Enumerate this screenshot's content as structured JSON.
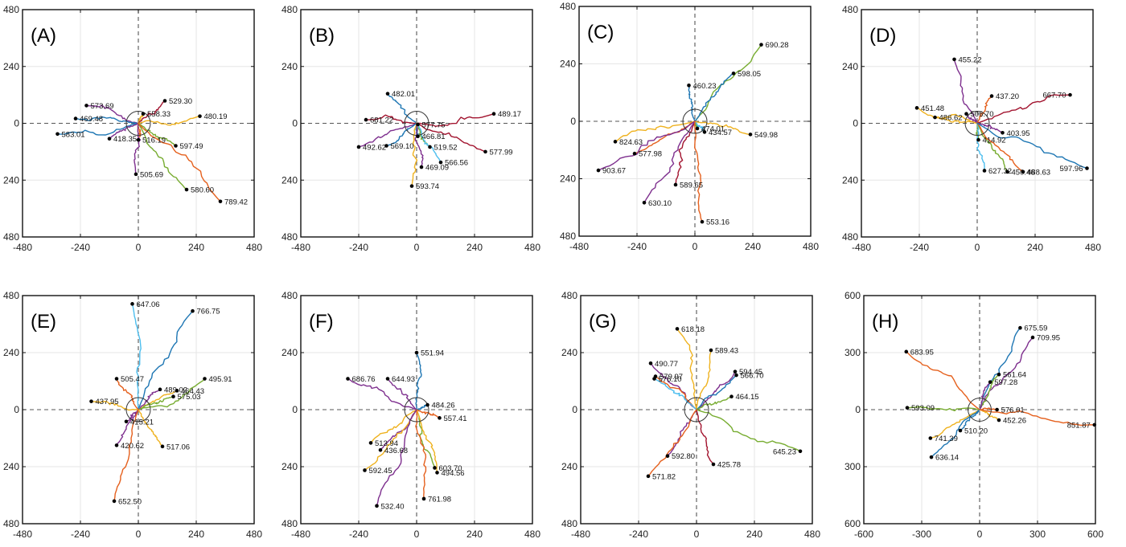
{
  "colors": [
    "#1f77b4",
    "#e5601d",
    "#efb21f",
    "#7e2f8e",
    "#77ac30",
    "#4dbeee",
    "#a2142f"
  ],
  "chart_data": [
    {
      "type": "line",
      "label": "(A)",
      "xticks": [
        "-480",
        "-240",
        "0",
        "240",
        "480"
      ],
      "yticks": [
        "480",
        "240",
        "0",
        "240",
        "480"
      ],
      "xlim": [
        -480,
        480
      ],
      "ylim": [
        -480,
        480
      ],
      "circle_radius": 50,
      "series": [
        {
          "color": 0,
          "end": [
            -335,
            -45
          ],
          "label": "583.01"
        },
        {
          "color": 3,
          "end": [
            -215,
            75
          ],
          "label": "573.69"
        },
        {
          "color": 0,
          "end": [
            -260,
            20
          ],
          "label": "469.48"
        },
        {
          "color": 3,
          "end": [
            -120,
            -65
          ],
          "label": "418.35"
        },
        {
          "color": 1,
          "end": [
            0,
            -70
          ],
          "label": "516.19"
        },
        {
          "color": 3,
          "end": [
            -10,
            -215
          ],
          "label": "505.69"
        },
        {
          "color": 2,
          "end": [
            20,
            40
          ],
          "label": "558.33"
        },
        {
          "color": 6,
          "end": [
            110,
            95
          ],
          "label": "529.30"
        },
        {
          "color": 2,
          "end": [
            255,
            30
          ],
          "label": "480.19"
        },
        {
          "color": 4,
          "end": [
            155,
            -95
          ],
          "label": "597.49"
        },
        {
          "color": 4,
          "end": [
            200,
            -280
          ],
          "label": "580.60"
        },
        {
          "color": 1,
          "end": [
            340,
            -330
          ],
          "label": "789.42"
        }
      ]
    },
    {
      "type": "line",
      "label": "(B)",
      "xticks": [
        "-480",
        "-240",
        "0",
        "240",
        "480"
      ],
      "yticks": [
        "480",
        "240",
        "0",
        "240",
        "480"
      ],
      "xlim": [
        -480,
        480
      ],
      "ylim": [
        -480,
        480
      ],
      "circle_radius": 50,
      "series": [
        {
          "color": 0,
          "end": [
            -120,
            125
          ],
          "label": "482.01"
        },
        {
          "color": 6,
          "end": [
            -210,
            15
          ],
          "label": "681.22"
        },
        {
          "color": 3,
          "end": [
            -240,
            -100
          ],
          "label": "492.62"
        },
        {
          "color": 0,
          "end": [
            -125,
            -95
          ],
          "label": "569.10"
        },
        {
          "color": 2,
          "end": [
            -20,
            -265
          ],
          "label": "593.74"
        },
        {
          "color": 4,
          "end": [
            5,
            -5
          ],
          "label": "577.75"
        },
        {
          "color": 0,
          "end": [
            5,
            -55
          ],
          "label": "466.81"
        },
        {
          "color": 4,
          "end": [
            55,
            -100
          ],
          "label": "519.52"
        },
        {
          "color": 5,
          "end": [
            100,
            -165
          ],
          "label": "566.56"
        },
        {
          "color": 3,
          "end": [
            20,
            -185
          ],
          "label": "469.09"
        },
        {
          "color": 6,
          "end": [
            320,
            40
          ],
          "label": "489.17"
        },
        {
          "color": 6,
          "end": [
            285,
            -120
          ],
          "label": "577.99"
        }
      ]
    },
    {
      "type": "line",
      "label": "(C)",
      "xticks": [
        "-480",
        "-240",
        "0",
        "240",
        "480"
      ],
      "yticks": [
        "480",
        "240",
        "0",
        "240",
        "480"
      ],
      "xlim": [
        -480,
        480
      ],
      "ylim": [
        -480,
        480
      ],
      "circle_radius": 50,
      "series": [
        {
          "color": 4,
          "end": [
            275,
            320
          ],
          "label": "690.28"
        },
        {
          "color": 0,
          "end": [
            160,
            200
          ],
          "label": "598.05"
        },
        {
          "color": 0,
          "end": [
            -25,
            150
          ],
          "label": "460.23"
        },
        {
          "color": 4,
          "end": [
            10,
            -30
          ],
          "label": "474.01"
        },
        {
          "color": 5,
          "end": [
            40,
            -45
          ],
          "label": "434.57"
        },
        {
          "color": 2,
          "end": [
            230,
            -55
          ],
          "label": "549.98"
        },
        {
          "color": 2,
          "end": [
            -330,
            -85
          ],
          "label": "824.63"
        },
        {
          "color": 1,
          "end": [
            -250,
            -135
          ],
          "label": "577.98"
        },
        {
          "color": 3,
          "end": [
            -400,
            -205
          ],
          "label": "903.67"
        },
        {
          "color": 6,
          "end": [
            -80,
            -265
          ],
          "label": "589.65"
        },
        {
          "color": 3,
          "end": [
            -210,
            -340
          ],
          "label": "630.10"
        },
        {
          "color": 1,
          "end": [
            30,
            -420
          ],
          "label": "553.16"
        }
      ]
    },
    {
      "type": "line",
      "label": "(D)",
      "xticks": [
        "-480",
        "-240",
        "0",
        "240",
        "480"
      ],
      "yticks": [
        "480",
        "240",
        "0",
        "240",
        "480"
      ],
      "xlim": [
        -480,
        480
      ],
      "ylim": [
        -480,
        480
      ],
      "circle_radius": 50,
      "series": [
        {
          "color": 3,
          "end": [
            -95,
            270
          ],
          "label": "455.22"
        },
        {
          "color": 1,
          "end": [
            60,
            115
          ],
          "label": "437.20"
        },
        {
          "color": 6,
          "end": [
            385,
            120
          ],
          "label": "667.70"
        },
        {
          "color": 2,
          "end": [
            -250,
            65
          ],
          "label": "451.48"
        },
        {
          "color": 3,
          "end": [
            -45,
            40
          ],
          "label": "506.70"
        },
        {
          "color": 2,
          "end": [
            -175,
            25
          ],
          "label": "486.62"
        },
        {
          "color": 3,
          "end": [
            105,
            -40
          ],
          "label": "403.95"
        },
        {
          "color": 4,
          "end": [
            5,
            -70
          ],
          "label": "414.92"
        },
        {
          "color": 5,
          "end": [
            30,
            -200
          ],
          "label": "627.32"
        },
        {
          "color": 4,
          "end": [
            125,
            -205
          ],
          "label": "450.46"
        },
        {
          "color": 1,
          "end": [
            190,
            -205
          ],
          "label": "488.63"
        },
        {
          "color": 0,
          "end": [
            455,
            -190
          ],
          "label": "597.96"
        }
      ]
    },
    {
      "type": "line",
      "label": "(E)",
      "xticks": [
        "-480",
        "-240",
        "0",
        "240",
        "480"
      ],
      "yticks": [
        "480",
        "240",
        "0",
        "240",
        "480"
      ],
      "xlim": [
        -480,
        480
      ],
      "ylim": [
        -480,
        480
      ],
      "circle_radius": 50,
      "series": [
        {
          "color": 5,
          "end": [
            -25,
            445
          ],
          "label": "647.06"
        },
        {
          "color": 0,
          "end": [
            225,
            415
          ],
          "label": "766.75"
        },
        {
          "color": 1,
          "end": [
            -90,
            130
          ],
          "label": "505.47"
        },
        {
          "color": 4,
          "end": [
            275,
            130
          ],
          "label": "495.91"
        },
        {
          "color": 3,
          "end": [
            90,
            85
          ],
          "label": "489.02"
        },
        {
          "color": 2,
          "end": [
            160,
            80
          ],
          "label": "464.43"
        },
        {
          "color": 4,
          "end": [
            145,
            55
          ],
          "label": "575.03"
        },
        {
          "color": 2,
          "end": [
            -195,
            35
          ],
          "label": "437.95"
        },
        {
          "color": 3,
          "end": [
            -50,
            -50
          ],
          "label": "415.21"
        },
        {
          "color": 3,
          "end": [
            -90,
            -150
          ],
          "label": "420.62"
        },
        {
          "color": 2,
          "end": [
            100,
            -155
          ],
          "label": "517.06"
        },
        {
          "color": 1,
          "end": [
            -100,
            -385
          ],
          "label": "652.50"
        }
      ]
    },
    {
      "type": "line",
      "label": "(F)",
      "xticks": [
        "-480",
        "-240",
        "0",
        "240",
        "480"
      ],
      "yticks": [
        "480",
        "240",
        "0",
        "240",
        "480"
      ],
      "xlim": [
        -480,
        480
      ],
      "ylim": [
        -480,
        480
      ],
      "circle_radius": 50,
      "series": [
        {
          "color": 0,
          "end": [
            0,
            240
          ],
          "label": "551.94"
        },
        {
          "color": 3,
          "end": [
            -285,
            130
          ],
          "label": "686.76"
        },
        {
          "color": 3,
          "end": [
            -120,
            130
          ],
          "label": "644.93"
        },
        {
          "color": 0,
          "end": [
            45,
            20
          ],
          "label": "484.26"
        },
        {
          "color": 1,
          "end": [
            95,
            -35
          ],
          "label": "557.41"
        },
        {
          "color": 2,
          "end": [
            -190,
            -140
          ],
          "label": "513.94"
        },
        {
          "color": 3,
          "end": [
            -150,
            -170
          ],
          "label": "436.68"
        },
        {
          "color": 2,
          "end": [
            -215,
            -255
          ],
          "label": "592.45"
        },
        {
          "color": 4,
          "end": [
            75,
            -245
          ],
          "label": "603.70"
        },
        {
          "color": 2,
          "end": [
            85,
            -265
          ],
          "label": "494.56"
        },
        {
          "color": 1,
          "end": [
            30,
            -375
          ],
          "label": "761.98"
        },
        {
          "color": 3,
          "end": [
            -165,
            -405
          ],
          "label": "532.40"
        }
      ]
    },
    {
      "type": "line",
      "label": "(G)",
      "xticks": [
        "-480",
        "-240",
        "0",
        "240",
        "480"
      ],
      "yticks": [
        "480",
        "240",
        "0",
        "240",
        "480"
      ],
      "xlim": [
        -480,
        480
      ],
      "ylim": [
        -480,
        480
      ],
      "circle_radius": 50,
      "series": [
        {
          "color": 2,
          "end": [
            -80,
            340
          ],
          "label": "618.18"
        },
        {
          "color": 2,
          "end": [
            60,
            250
          ],
          "label": "589.43"
        },
        {
          "color": 3,
          "end": [
            -190,
            195
          ],
          "label": "490.77"
        },
        {
          "color": 1,
          "end": [
            -170,
            140
          ],
          "label": "579.97"
        },
        {
          "color": 5,
          "end": [
            -175,
            130
          ],
          "label": "576.10"
        },
        {
          "color": 3,
          "end": [
            160,
            160
          ],
          "label": "594.45"
        },
        {
          "color": 0,
          "end": [
            165,
            145
          ],
          "label": "566.70"
        },
        {
          "color": 4,
          "end": [
            145,
            55
          ],
          "label": "464.15"
        },
        {
          "color": 4,
          "end": [
            430,
            -175
          ],
          "label": "645.23"
        },
        {
          "color": 3,
          "end": [
            -120,
            -195
          ],
          "label": "592.80"
        },
        {
          "color": 6,
          "end": [
            70,
            -230
          ],
          "label": "425.78"
        },
        {
          "color": 1,
          "end": [
            -200,
            -280
          ],
          "label": "571.82"
        }
      ]
    },
    {
      "type": "line",
      "label": "(H)",
      "xticks": [
        "-600",
        "-300",
        "0",
        "300",
        "600"
      ],
      "yticks": [
        "600",
        "300",
        "0",
        "300",
        "600"
      ],
      "xlim": [
        -600,
        600
      ],
      "ylim": [
        -600,
        600
      ],
      "circle_radius": 60,
      "series": [
        {
          "color": 0,
          "end": [
            210,
            430
          ],
          "label": "675.59"
        },
        {
          "color": 3,
          "end": [
            275,
            380
          ],
          "label": "709.95"
        },
        {
          "color": 1,
          "end": [
            -380,
            305
          ],
          "label": "683.95"
        },
        {
          "color": 4,
          "end": [
            100,
            185
          ],
          "label": "561.64"
        },
        {
          "color": 3,
          "end": [
            55,
            145
          ],
          "label": "597.28"
        },
        {
          "color": 4,
          "end": [
            -375,
            10
          ],
          "label": "593.09"
        },
        {
          "color": 1,
          "end": [
            90,
            0
          ],
          "label": "576.01"
        },
        {
          "color": 2,
          "end": [
            100,
            -55
          ],
          "label": "452.26"
        },
        {
          "color": 0,
          "end": [
            -100,
            -110
          ],
          "label": "510.20"
        },
        {
          "color": 2,
          "end": [
            -255,
            -150
          ],
          "label": "741.39"
        },
        {
          "color": 0,
          "end": [
            -250,
            -250
          ],
          "label": "636.14"
        },
        {
          "color": 1,
          "end": [
            595,
            -80
          ],
          "label": "851.87"
        }
      ]
    }
  ]
}
